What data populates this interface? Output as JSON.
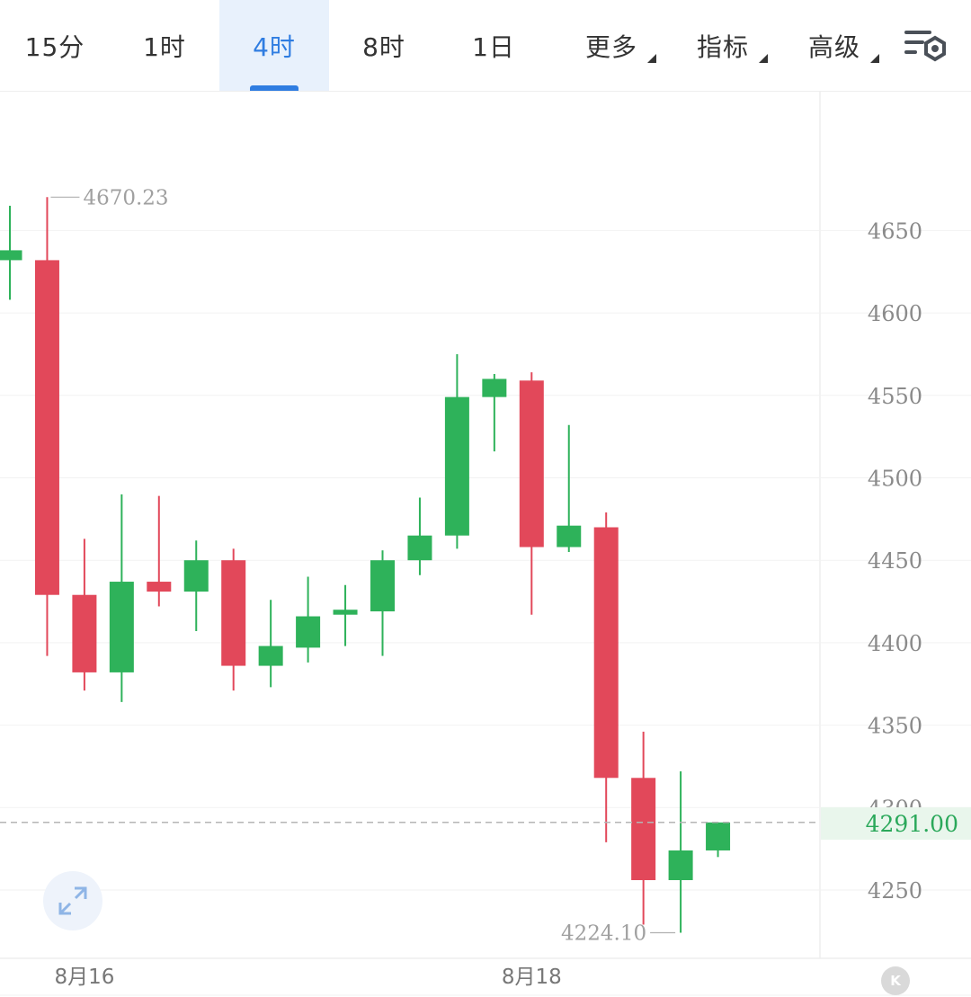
{
  "tabs": [
    {
      "label": "15分",
      "active": false,
      "dropdown": false
    },
    {
      "label": "1时",
      "active": false,
      "dropdown": false
    },
    {
      "label": "4时",
      "active": true,
      "dropdown": false
    },
    {
      "label": "8时",
      "active": false,
      "dropdown": false
    },
    {
      "label": "1日",
      "active": false,
      "dropdown": false
    },
    {
      "label": "更多",
      "active": false,
      "dropdown": true
    },
    {
      "label": "指标",
      "active": false,
      "dropdown": true
    },
    {
      "label": "高级",
      "active": false,
      "dropdown": true
    }
  ],
  "icons": {
    "settings": "chart-settings-icon",
    "expand": "expand-icon",
    "k": "k-icon"
  },
  "k_button_label": "K",
  "colors": {
    "up": "#2eb25a",
    "down": "#e2485a",
    "accent": "#2f7de1"
  },
  "current_price": "4291.00",
  "chart_data": {
    "type": "candlestick",
    "interval": "4时",
    "ylim": [
      4210,
      4735
    ],
    "y_ticks": [
      4250,
      4300,
      4350,
      4400,
      4450,
      4500,
      4550,
      4600,
      4650
    ],
    "y_tick_labels": [
      "4250",
      "4300",
      "4350",
      "4400",
      "4450",
      "4500",
      "4550",
      "4600",
      "4650"
    ],
    "x_labels": [
      {
        "label": "8月16",
        "candle_index": 2
      },
      {
        "label": "8月18",
        "candle_index": 14
      }
    ],
    "candles": [
      {
        "open": 4632,
        "high": 4665,
        "low": 4608,
        "close": 4638
      },
      {
        "open": 4632,
        "high": 4670.23,
        "low": 4392,
        "close": 4429
      },
      {
        "open": 4429,
        "high": 4463,
        "low": 4371,
        "close": 4382
      },
      {
        "open": 4382,
        "high": 4490,
        "low": 4364,
        "close": 4437
      },
      {
        "open": 4437,
        "high": 4489,
        "low": 4422,
        "close": 4431
      },
      {
        "open": 4431,
        "high": 4462,
        "low": 4407,
        "close": 4450
      },
      {
        "open": 4450,
        "high": 4457,
        "low": 4371,
        "close": 4386
      },
      {
        "open": 4386,
        "high": 4426,
        "low": 4373,
        "close": 4398
      },
      {
        "open": 4397,
        "high": 4440,
        "low": 4388,
        "close": 4416
      },
      {
        "open": 4417,
        "high": 4435,
        "low": 4398,
        "close": 4420
      },
      {
        "open": 4419,
        "high": 4456,
        "low": 4392,
        "close": 4450
      },
      {
        "open": 4450,
        "high": 4488,
        "low": 4441,
        "close": 4465
      },
      {
        "open": 4465,
        "high": 4575,
        "low": 4457,
        "close": 4549
      },
      {
        "open": 4549,
        "high": 4563,
        "low": 4516,
        "close": 4560
      },
      {
        "open": 4559,
        "high": 4564,
        "low": 4417,
        "close": 4458
      },
      {
        "open": 4458,
        "high": 4532,
        "low": 4455,
        "close": 4471
      },
      {
        "open": 4470,
        "high": 4479,
        "low": 4279,
        "close": 4318
      },
      {
        "open": 4318,
        "high": 4346,
        "low": 4229,
        "close": 4256
      },
      {
        "open": 4256,
        "high": 4322,
        "low": 4224.1,
        "close": 4274
      },
      {
        "open": 4274,
        "high": 4291,
        "low": 4270,
        "close": 4291
      }
    ],
    "annotations": [
      {
        "label": "4670.23",
        "candle_index": 1,
        "type": "high"
      },
      {
        "label": "4224.10",
        "candle_index": 18,
        "type": "low"
      }
    ],
    "current_price_line": 4291
  }
}
